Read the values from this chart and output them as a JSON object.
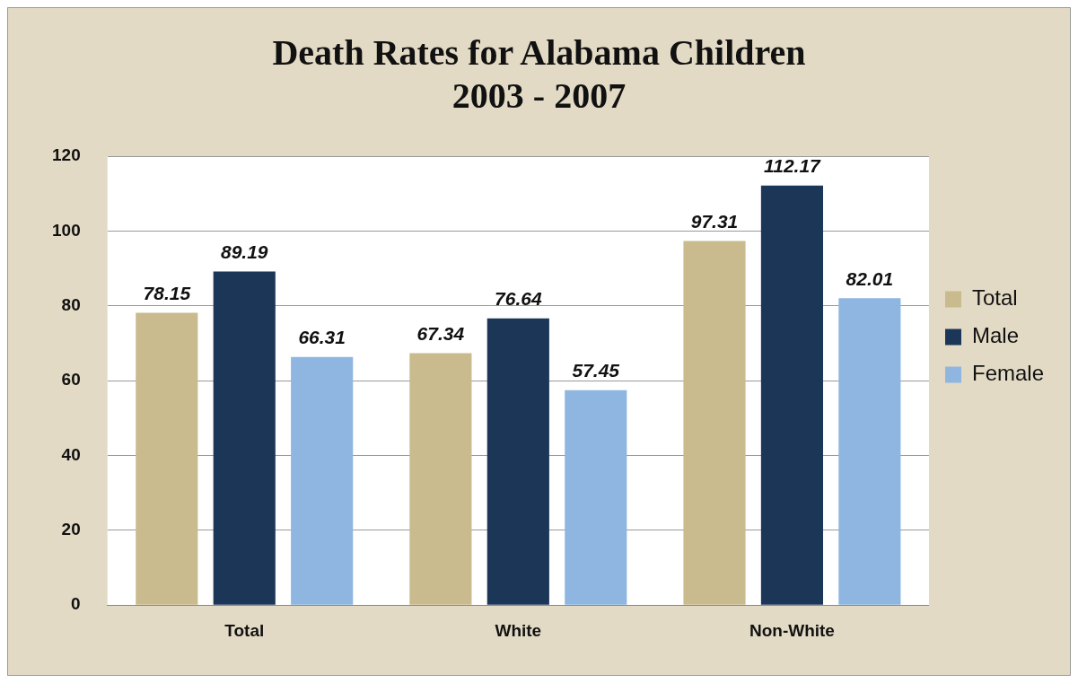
{
  "chart_data": {
    "type": "bar",
    "title": "Death Rates for Alabama Children\n2003 - 2007",
    "categories": [
      "Total",
      "White",
      "Non-White"
    ],
    "series": [
      {
        "name": "Total",
        "color": "#c9bb8e",
        "values": [
          78.15,
          67.34,
          97.31
        ]
      },
      {
        "name": "Male",
        "color": "#1c3658",
        "values": [
          89.19,
          76.64,
          112.17
        ]
      },
      {
        "name": "Female",
        "color": "#8fb6e0",
        "values": [
          66.31,
          57.45,
          82.01
        ]
      }
    ],
    "ylim": [
      0,
      120
    ],
    "yticks": [
      0,
      20,
      40,
      60,
      80,
      100,
      120
    ],
    "grid": "y",
    "legend": "right",
    "data_labels": true
  }
}
